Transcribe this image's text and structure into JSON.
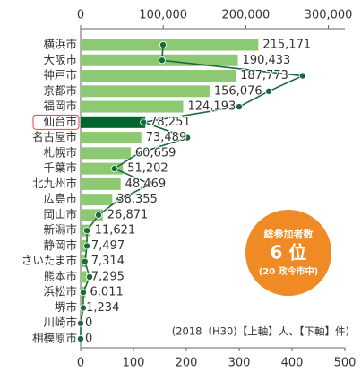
{
  "chart_data": {
    "type": "bar",
    "categories": [
      "横浜市",
      "大阪市",
      "神戸市",
      "京都市",
      "福岡市",
      "仙台市",
      "名古屋市",
      "札幌市",
      "千葉市",
      "北九州市",
      "広島市",
      "岡山市",
      "新潟市",
      "静岡市",
      "さいたま市",
      "熊本市",
      "浜松市",
      "堺市",
      "川崎市",
      "相模原市"
    ],
    "highlight_category": "仙台市",
    "series": [
      {
        "type": "bar",
        "color": "#8dc972",
        "highlight_color": "#00652f",
        "values": [
          215171,
          190433,
          187773,
          156076,
          124193,
          78251,
          73489,
          60659,
          51202,
          48469,
          38355,
          26871,
          11621,
          7497,
          7314,
          7295,
          6011,
          1234,
          0,
          0
        ],
        "value_labels": [
          "215,171",
          "190,433",
          "187,773",
          "156,076",
          "124,193",
          "78,251",
          "73,489",
          "60,659",
          "51,202",
          "48,469",
          "38,355",
          "26,871",
          "11,621",
          "7,497",
          "7,314",
          "7,295",
          "6,011",
          "1,234",
          "0",
          "0"
        ]
      },
      {
        "type": "line",
        "color": "#1a6b3c",
        "axis": "x2",
        "values": [
          156,
          154,
          420,
          356,
          300,
          119,
          202,
          110,
          64,
          132,
          73,
          34,
          12,
          12,
          8,
          17,
          5,
          5,
          0,
          0
        ]
      }
    ],
    "xlim": [
      0,
      320000
    ],
    "xticks": [
      0,
      {
        "value": 100000,
        "label": "100,000"
      },
      {
        "value": 200000,
        "label": "200,000"
      },
      {
        "value": 300000,
        "label": "300,000"
      }
    ],
    "x2lim": [
      0,
      500
    ],
    "x2ticks": [
      0,
      100,
      200,
      300,
      400,
      500
    ],
    "annotation": "(2018（H30)【上軸】人、【下軸】件)",
    "badge": {
      "title": "総参加者数",
      "rank": "6 位",
      "note": "(20 政令市中)",
      "color": "#f08a24"
    }
  }
}
